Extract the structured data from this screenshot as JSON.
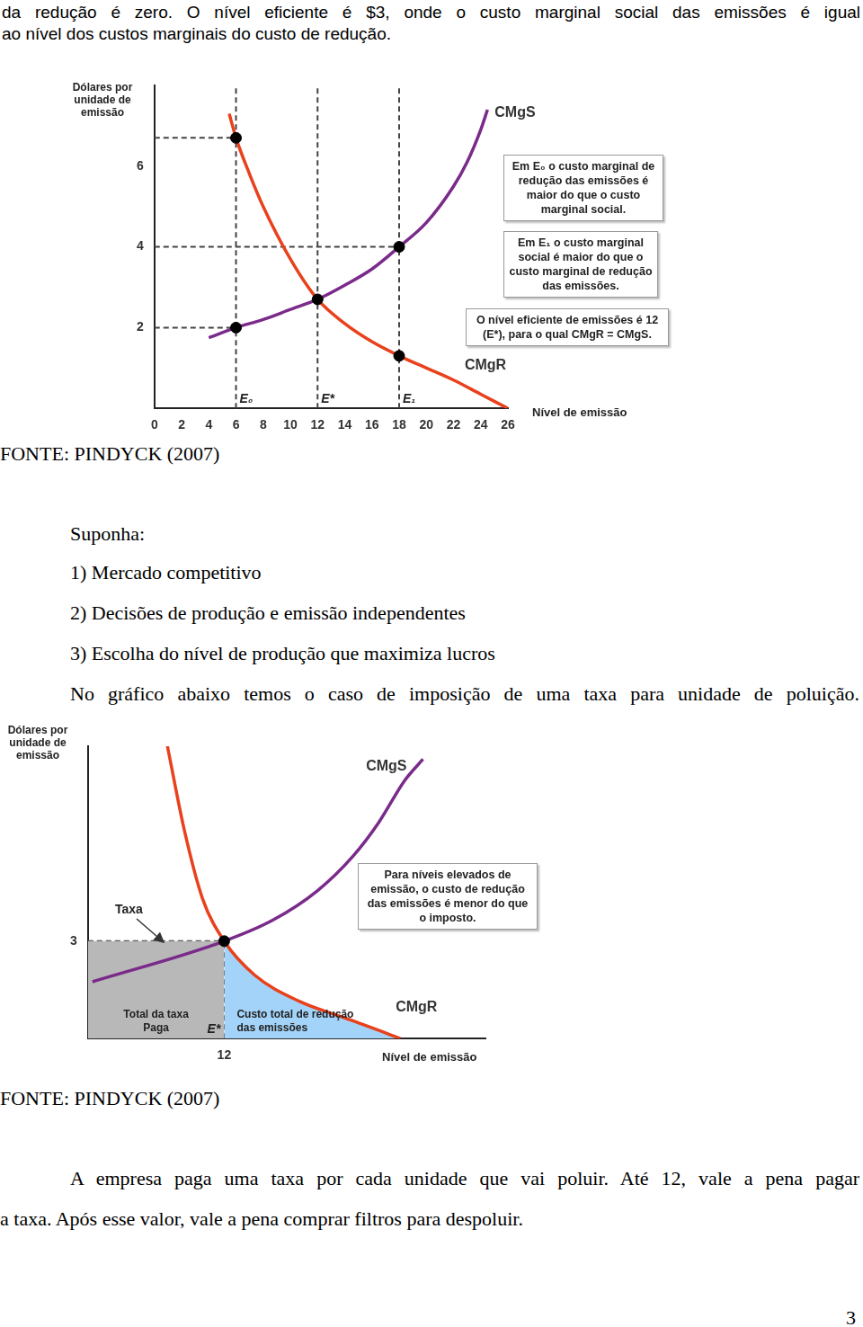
{
  "intro_lines": [
    "da redução é zero. O nível eficiente é $3, onde o custo marginal social das emissões é igual",
    "ao nível dos custos marginais do custo de redução."
  ],
  "chart_data": [
    {
      "type": "line",
      "y_label": "Dólares por unidade de emissão",
      "x_label": "Nível de emissão",
      "xlim": [
        0,
        26
      ],
      "xticks": [
        0,
        2,
        4,
        6,
        8,
        10,
        12,
        14,
        16,
        18,
        20,
        22,
        24,
        26
      ],
      "ylim": [
        0,
        8
      ],
      "yticks": [
        2,
        4,
        6
      ],
      "grid": false,
      "series": [
        {
          "name": "CMgS",
          "color": "#7a2b8a",
          "x": [
            4,
            6,
            8,
            10,
            12,
            14,
            16,
            18,
            20,
            22,
            23,
            24,
            24.5
          ],
          "values": [
            1.75,
            2,
            2.2,
            2.45,
            2.7,
            3.05,
            3.45,
            4,
            4.6,
            5.5,
            6.1,
            6.9,
            7.4
          ]
        },
        {
          "name": "CMgR",
          "color": "#e8411c",
          "x": [
            5.5,
            6,
            7,
            8,
            10,
            12,
            14,
            16,
            18,
            20,
            22,
            24,
            26
          ],
          "values": [
            7.3,
            6.7,
            5.8,
            5.0,
            3.7,
            2.7,
            2.1,
            1.65,
            1.3,
            1.0,
            0.7,
            0.35,
            0
          ]
        }
      ],
      "points": {
        "x": [
          6,
          6,
          12,
          18,
          18
        ],
        "values": [
          6.7,
          2,
          2.7,
          4,
          1.3
        ]
      },
      "reference_lines": {
        "x": [
          6,
          12,
          18
        ],
        "x_labels": [
          "E₀",
          "E*",
          "E₁"
        ],
        "y": [
          6.7,
          4,
          2
        ]
      },
      "annotations": [
        "Em E₀ o custo marginal de redução das emissões é maior do que o custo marginal social.",
        "Em E₁ o custo marginal social é maior do que o custo marginal de redução das emissões.",
        "O nível eficiente de emissões é 12 (E*), para o qual CMgR = CMgS."
      ]
    },
    {
      "type": "line",
      "y_label": "Dólares por unidade de emissão",
      "x_label": "Nível de emissão",
      "xlim": [
        0,
        35
      ],
      "xticks": [
        12
      ],
      "ylim": [
        0,
        9
      ],
      "yticks": [
        3
      ],
      "grid": false,
      "series": [
        {
          "name": "CMgS",
          "color": "#7a2b8a",
          "x": [
            0.4,
            12,
            16.3,
            20.2,
            23.3,
            25.6,
            27.9,
            29.5
          ],
          "values": [
            1.75,
            3,
            3.65,
            4.55,
            5.6,
            6.65,
            7.95,
            8.6
          ]
        },
        {
          "name": "CMgR",
          "color": "#e8411c",
          "x": [
            7,
            8.5,
            10.1,
            12,
            14.7,
            18.6,
            22.5,
            26.4,
            27.5
          ],
          "values": [
            9,
            6.4,
            4.3,
            3,
            1.95,
            1.15,
            0.65,
            0.15,
            0
          ]
        },
        {
          "name": "Total da taxa Paga",
          "type": "area",
          "color": "#b8b8b8",
          "x": [
            0,
            12
          ],
          "values": [
            3,
            3
          ]
        },
        {
          "name": "Custo total de redução das emissões",
          "type": "area",
          "color": "#a3d3f8",
          "x": [
            12,
            14.7,
            18.6,
            22.5,
            26.4,
            27.5
          ],
          "values": [
            3,
            1.95,
            1.15,
            0.65,
            0.15,
            0
          ]
        }
      ],
      "points": {
        "x": [
          12
        ],
        "values": [
          3
        ]
      },
      "reference_lines": {
        "x": [
          12
        ],
        "x_labels": [
          "E*"
        ],
        "y": [
          3
        ]
      },
      "annotations": [
        "Taxa",
        "Para níveis elevados de emissão, o custo de redução das emissões é menor do que o imposto."
      ]
    }
  ],
  "sources": [
    "FONTE: PINDYCK (2007)",
    "FONTE: PINDYCK (2007)"
  ],
  "assumptions": {
    "heading": "Suponha:",
    "items": [
      "1) Mercado competitivo",
      "2) Decisões de produção e emissão independentes",
      "3) Escolha do nível de produção que maximiza lucros"
    ]
  },
  "lead_in": "No gráfico abaixo temos o caso de imposição de uma taxa para unidade de poluição.",
  "closing_lines": [
    "A empresa paga uma taxa por cada unidade que vai poluir. Até 12, vale a pena pagar",
    "a taxa. Após esse valor, vale a pena comprar filtros para despoluir."
  ],
  "page_number": 3
}
